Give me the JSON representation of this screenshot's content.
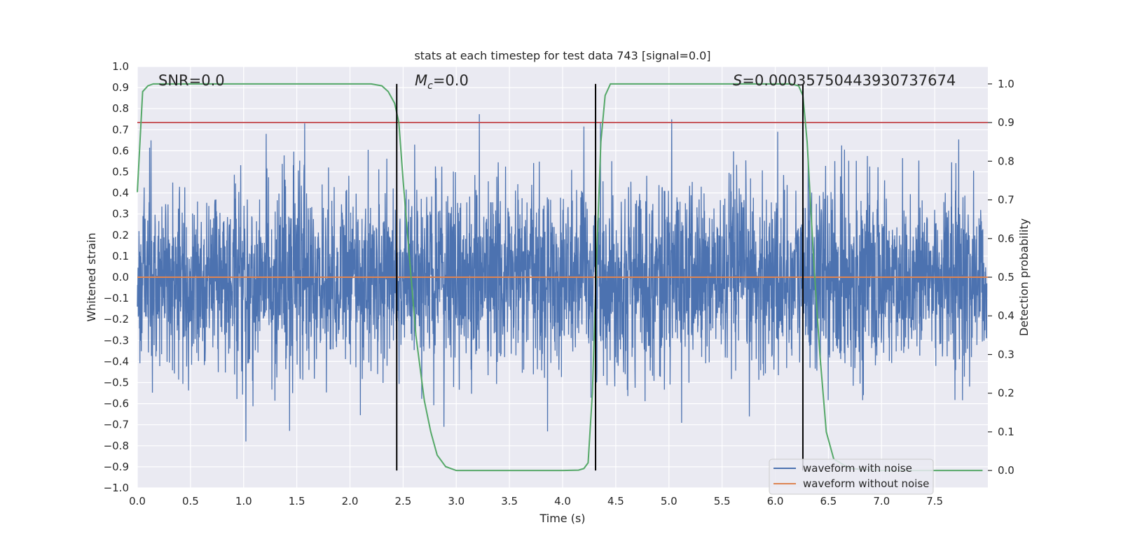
{
  "chart_data": {
    "type": "line",
    "title": "stats at each timestep for test data 743 [signal=0.0]",
    "xlabel": "Time (s)",
    "ylabel": "Whitened strain",
    "ylabel_right": "Detection probability",
    "xlim": [
      0.0,
      8.0
    ],
    "ylim": [
      -1.0,
      1.0
    ],
    "ylim_right": [
      -0.045,
      1.045
    ],
    "x_ticks": [
      0.0,
      0.5,
      1.0,
      1.5,
      2.0,
      2.5,
      3.0,
      3.5,
      4.0,
      4.5,
      5.0,
      5.5,
      6.0,
      6.5,
      7.0,
      7.5
    ],
    "x_tick_labels": [
      "0.0",
      "0.5",
      "1.0",
      "1.5",
      "2.0",
      "2.5",
      "3.0",
      "3.5",
      "4.0",
      "4.5",
      "5.0",
      "5.5",
      "6.0",
      "6.5",
      "7.0",
      "7.5"
    ],
    "y_ticks": [
      -1.0,
      -0.9,
      -0.8,
      -0.7,
      -0.6,
      -0.5,
      -0.4,
      -0.3,
      -0.2,
      -0.1,
      0.0,
      0.1,
      0.2,
      0.3,
      0.4,
      0.5,
      0.6,
      0.7,
      0.8,
      0.9,
      1.0
    ],
    "y_tick_labels": [
      "−1.0",
      "−0.9",
      "−0.8",
      "−0.7",
      "−0.6",
      "−0.5",
      "−0.4",
      "−0.3",
      "−0.2",
      "−0.1",
      "0.0",
      "0.1",
      "0.2",
      "0.3",
      "0.4",
      "0.5",
      "0.6",
      "0.7",
      "0.8",
      "0.9",
      "1.0"
    ],
    "y_right_ticks": [
      0.0,
      0.1,
      0.2,
      0.3,
      0.4,
      0.5,
      0.6,
      0.7,
      0.8,
      0.9,
      1.0
    ],
    "y_right_tick_labels": [
      "0.0",
      "0.1",
      "0.2",
      "0.3",
      "0.4",
      "0.5",
      "0.6",
      "0.7",
      "0.8",
      "0.9",
      "1.0"
    ],
    "grid": true,
    "legend_position": "bottom-right",
    "annotations": {
      "snr": "SNR=0.0",
      "mc_prefix": "M",
      "mc_sub": "c",
      "mc_value": "=0.0",
      "s_prefix": "S",
      "s_value": "=0.00035750443930737674"
    },
    "threshold": {
      "axis": "right",
      "value": 0.9,
      "color": "#c44e52"
    },
    "vertical_lines": [
      2.44,
      4.31,
      6.26
    ],
    "colors": {
      "waveform_with_noise": "#4c72b0",
      "waveform_without_noise": "#dd8452",
      "detection_probability": "#55a868",
      "vertical_line": "#000000",
      "background": "#eaeaf2"
    },
    "series": [
      {
        "name": "waveform with noise",
        "axis": "left",
        "kind": "noise",
        "amplitude_envelope": 0.93
      },
      {
        "name": "waveform without noise",
        "axis": "left",
        "x": [
          0.0,
          8.0
        ],
        "values": [
          0.0,
          0.0
        ]
      },
      {
        "axis": "right",
        "x": [
          0.0,
          0.05,
          0.1,
          0.15,
          0.5,
          1.0,
          1.5,
          2.0,
          2.2,
          2.3,
          2.36,
          2.42,
          2.46,
          2.5,
          2.56,
          2.62,
          2.7,
          2.76,
          2.82,
          2.9,
          3.0,
          3.5,
          4.0,
          4.15,
          4.2,
          4.24,
          4.28,
          4.32,
          4.36,
          4.4,
          4.45,
          4.5,
          4.6,
          5.0,
          5.5,
          6.0,
          6.15,
          6.22,
          6.26,
          6.3,
          6.36,
          6.42,
          6.48,
          6.55,
          6.7,
          7.0,
          7.5,
          7.95
        ],
        "values": [
          0.72,
          0.98,
          0.995,
          1.0,
          1.0,
          1.0,
          1.0,
          1.0,
          1.0,
          0.995,
          0.98,
          0.95,
          0.9,
          0.75,
          0.55,
          0.35,
          0.18,
          0.1,
          0.04,
          0.01,
          0.0,
          0.0,
          0.0,
          0.001,
          0.005,
          0.02,
          0.2,
          0.55,
          0.85,
          0.97,
          1.0,
          1.0,
          1.0,
          1.0,
          1.0,
          1.0,
          1.0,
          0.995,
          0.97,
          0.85,
          0.55,
          0.3,
          0.1,
          0.03,
          0.005,
          0.0,
          0.0,
          0.0
        ]
      }
    ],
    "legend": [
      "waveform with noise",
      "waveform without noise"
    ]
  }
}
